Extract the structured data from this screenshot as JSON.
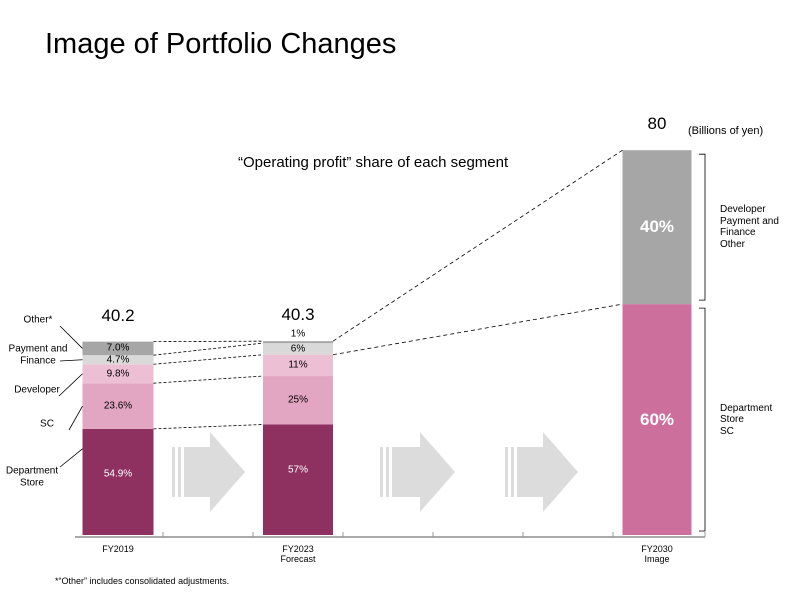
{
  "chart_data": {
    "type": "stacked_bar",
    "title": "Image of Portfolio Changes",
    "subtitle": "“Operating profit” share of each segment",
    "unit": "(Billions of yen)",
    "footnote": "*“Other” includes consolidated adjustments.",
    "bars": [
      {
        "category": "FY2019",
        "total": 40.2,
        "names": [
          "Department\nStore",
          "SC",
          "Developer",
          "Payment and\nFinance",
          "Other*"
        ],
        "values": [
          54.9,
          23.6,
          9.8,
          4.7,
          7.0
        ],
        "value_labels": [
          "54.9%",
          "23.6%",
          "9.8%",
          "4.7%",
          "7.0%"
        ],
        "colors": [
          "#8e3060",
          "#e2a5c2",
          "#edbfd5",
          "#d9d9d9",
          "#a6a6a6"
        ]
      },
      {
        "category": "FY2023\nForecast",
        "total": 40.3,
        "values": [
          57,
          25,
          11,
          6,
          1
        ],
        "value_labels": [
          "57%",
          "25%",
          "11%",
          "6%",
          "1%"
        ],
        "colors": [
          "#8e3060",
          "#e2a5c2",
          "#edbfd5",
          "#d9d9d9",
          "#a6a6a6"
        ]
      },
      {
        "category": "FY2030\nImage",
        "total": 80,
        "names": [
          "Department\nStore\nSC",
          "Developer\nPayment and\nFinance\nOther"
        ],
        "values": [
          60,
          40
        ],
        "value_labels": [
          "60%",
          "40%"
        ],
        "colors": [
          "#cc6f9c",
          "#a6a6a6"
        ]
      }
    ]
  }
}
